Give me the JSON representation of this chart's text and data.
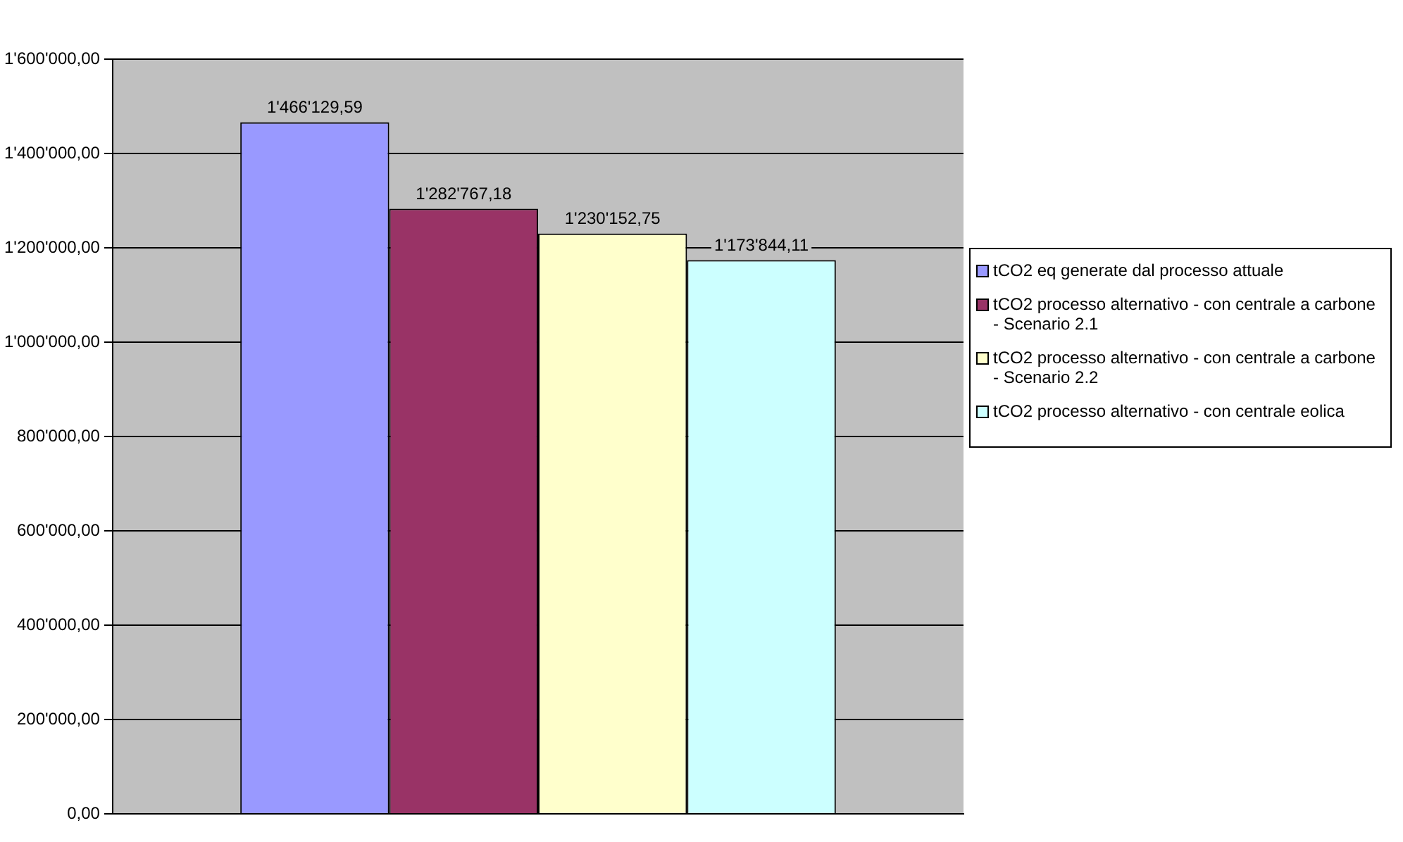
{
  "chart_data": {
    "type": "bar",
    "categories": [
      null
    ],
    "series": [
      {
        "name": "tCO2 eq generate dal processo attuale",
        "color": "#9999ff",
        "values": [
          1466129.59
        ],
        "value_labels": [
          "1'466'129,59"
        ]
      },
      {
        "name": "tCO2 processo alternativo - con centrale a carbone - Scenario 2.1",
        "color": "#993366",
        "values": [
          1282767.18
        ],
        "value_labels": [
          "1'282'767,18"
        ]
      },
      {
        "name": "tCO2 processo alternativo - con centrale a carbone - Scenario 2.2",
        "color": "#ffffcc",
        "values": [
          1230152.75
        ],
        "value_labels": [
          "1'230'152,75"
        ]
      },
      {
        "name": "tCO2 processo alternativo - con centrale eolica",
        "color": "#ccffff",
        "values": [
          1173844.11
        ],
        "value_labels": [
          "1'173'844,11"
        ]
      }
    ],
    "ylim": [
      0,
      1600000
    ],
    "yticks": [
      {
        "value": 0,
        "label": "0,00"
      },
      {
        "value": 200000,
        "label": "200'000,00"
      },
      {
        "value": 400000,
        "label": "400'000,00"
      },
      {
        "value": 600000,
        "label": "600'000,00"
      },
      {
        "value": 800000,
        "label": "800'000,00"
      },
      {
        "value": 1000000,
        "label": "1'000'000,00"
      },
      {
        "value": 1200000,
        "label": "1'200'000,00"
      },
      {
        "value": 1400000,
        "label": "1'400'000,00"
      },
      {
        "value": 1600000,
        "label": "1'600'000,00"
      }
    ],
    "grid": "y",
    "legend": "right",
    "tick_labels": "y"
  }
}
